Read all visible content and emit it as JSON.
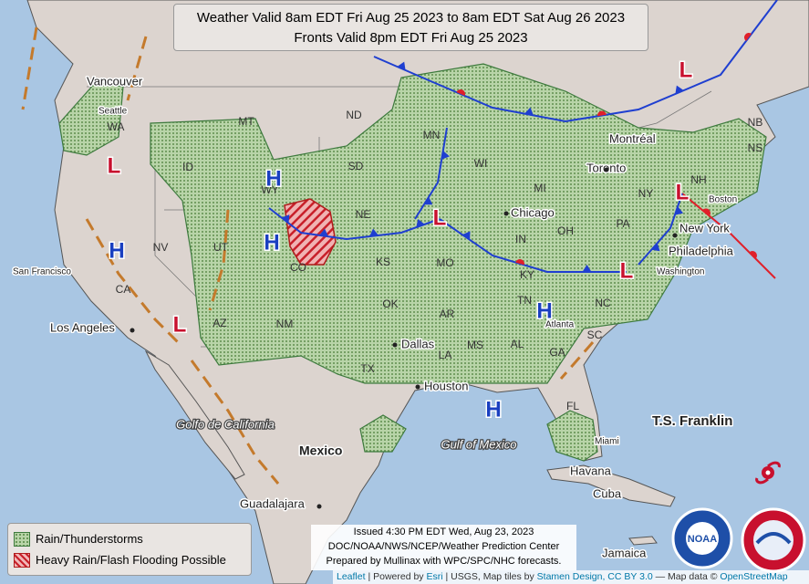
{
  "header": {
    "lines": [
      "Weather Valid 8am EDT Fri Aug 25 2023 to 8am EDT Sat Aug 26 2023",
      "Fronts Valid 8pm EDT Fri Aug 25 2023"
    ]
  },
  "legend": [
    "Rain/Thunderstorms",
    "Heavy Rain/Flash Flooding Possible"
  ],
  "issued": [
    "Issued 4:30 PM EDT Wed, Aug 23, 2023",
    "DOC/NOAA/NWS/NCEP/Weather Prediction Center",
    "Prepared by Mullinax with WPC/SPC/NHC forecasts."
  ],
  "attribution": [
    "Leaflet",
    "| Powered by",
    "Esri",
    "| USGS, Map tiles by",
    "Stamen Design",
    ", CC BY 3.0",
    "— Map data ©",
    "OpenStreetMap"
  ],
  "cities": [
    "Vancouver",
    "Seattle",
    "San Francisco",
    "Los Angeles",
    "Dallas",
    "Houston",
    "Chicago",
    "Toronto",
    "Montréal",
    "Boston",
    "New York",
    "Philadelphia",
    "Washington",
    "Atlanta",
    "Miami",
    "Havana",
    "Guadalajara",
    "Cuba",
    "Jamaica"
  ],
  "countries": [
    "Mexico"
  ],
  "states": [
    "WA",
    "ID",
    "MT",
    "ND",
    "SD",
    "WY",
    "NE",
    "KS",
    "OK",
    "TX",
    "NM",
    "AZ",
    "UT",
    "NV",
    "CA",
    "CO",
    "MN",
    "WI",
    "MI",
    "MO",
    "AR",
    "LA",
    "MS",
    "AL",
    "TN",
    "KY",
    "IN",
    "OH",
    "PA",
    "NY",
    "NH",
    "NB",
    "NS",
    "NC",
    "SC",
    "GA",
    "FL"
  ],
  "water": [
    "Golfo de California",
    "Gulf of Mexico"
  ],
  "pressure_centers": [
    "H",
    "H",
    "H",
    "H",
    "H",
    "L",
    "L",
    "L",
    "L",
    "L",
    "L"
  ],
  "storm": "T.S. Franklin"
}
